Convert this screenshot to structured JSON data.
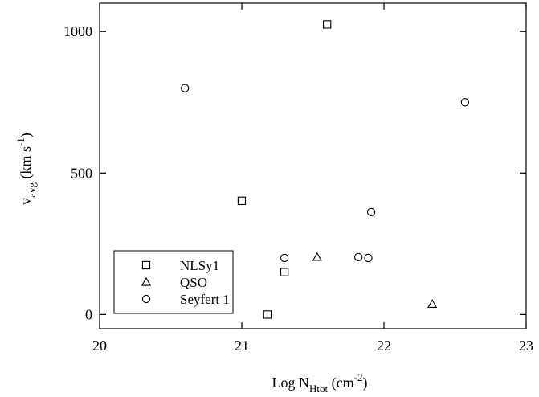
{
  "chart_data": {
    "type": "scatter",
    "xlabel": {
      "main": "Log N",
      "sub": "Htot",
      "unit_open": " (cm",
      "unit_sup": "-2",
      "unit_close": ")"
    },
    "ylabel": {
      "main": "v",
      "sub": "avg",
      "unit_open": " (km s",
      "unit_sup": "-1",
      "unit_close": ")"
    },
    "xlim": [
      20,
      23
    ],
    "ylim": [
      -50,
      1100
    ],
    "xticks": [
      20,
      21,
      22,
      23
    ],
    "yticks": [
      0,
      500,
      1000
    ],
    "xtick_labels": [
      "20",
      "21",
      "22",
      "23"
    ],
    "ytick_labels": [
      "0",
      "500",
      "1000"
    ],
    "grid": false,
    "legend_position": "bottom-left",
    "series": [
      {
        "name": "NLSy1",
        "marker": "square",
        "points": [
          [
            21.0,
            402
          ],
          [
            21.3,
            150
          ],
          [
            21.18,
            0
          ],
          [
            21.6,
            1025
          ]
        ]
      },
      {
        "name": "QSO",
        "marker": "triangle",
        "points": [
          [
            21.53,
            203
          ],
          [
            22.34,
            37
          ]
        ]
      },
      {
        "name": "Seyfert 1",
        "marker": "circle",
        "points": [
          [
            20.6,
            800
          ],
          [
            21.3,
            200
          ],
          [
            21.82,
            203
          ],
          [
            21.89,
            200
          ],
          [
            21.91,
            362
          ],
          [
            22.57,
            750
          ]
        ]
      }
    ]
  }
}
